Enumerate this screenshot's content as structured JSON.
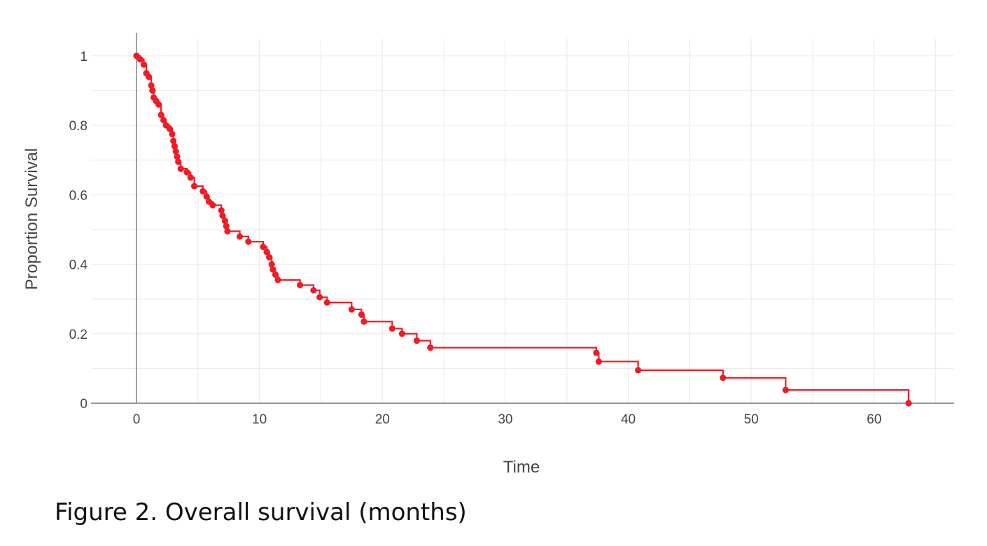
{
  "chart_data": {
    "type": "line",
    "subtype": "kaplan-meier step",
    "xlabel": "Time",
    "ylabel": "Proportion Survival",
    "xlim": [
      -3.7,
      66.5
    ],
    "ylim": [
      0,
      1.05
    ],
    "x_ticks": [
      0,
      10,
      20,
      30,
      40,
      50,
      60
    ],
    "y_ticks": [
      0,
      0.2,
      0.4,
      0.6,
      0.8,
      1
    ],
    "y_tick_labels": [
      "0",
      "0.2",
      "0.4",
      "0.6",
      "0.8",
      "1"
    ],
    "grid": true,
    "legend": false,
    "colors": {
      "series": "#ee1c25",
      "grid": "#ececec",
      "axis": "#888888"
    },
    "series": [
      {
        "x": [
          0,
          0.3,
          0.6,
          0.8,
          1.0,
          1.2,
          1.3,
          1.4,
          1.6,
          1.8,
          2.0,
          2.2,
          2.4,
          2.7,
          2.9,
          3.0,
          3.1,
          3.2,
          3.3,
          3.4,
          3.6,
          4.1,
          4.4,
          4.7,
          5.4,
          5.7,
          5.9,
          6.2,
          6.9,
          7.0,
          7.2,
          7.3,
          7.4,
          8.4,
          9.1,
          10.3,
          10.6,
          10.8,
          11.0,
          11.1,
          11.3,
          11.5,
          13.3,
          14.4,
          14.9,
          15.5,
          17.5,
          18.3,
          18.5,
          20.8,
          21.6,
          22.8,
          23.9,
          37.4,
          37.6,
          40.8,
          47.7,
          52.8,
          62.8
        ],
        "y": [
          1.0,
          0.99,
          0.975,
          0.95,
          0.94,
          0.915,
          0.9,
          0.88,
          0.87,
          0.86,
          0.83,
          0.815,
          0.8,
          0.79,
          0.775,
          0.755,
          0.74,
          0.725,
          0.71,
          0.695,
          0.675,
          0.665,
          0.65,
          0.625,
          0.61,
          0.595,
          0.58,
          0.57,
          0.555,
          0.54,
          0.525,
          0.51,
          0.495,
          0.48,
          0.465,
          0.45,
          0.435,
          0.42,
          0.4,
          0.385,
          0.37,
          0.355,
          0.34,
          0.325,
          0.305,
          0.29,
          0.27,
          0.255,
          0.235,
          0.215,
          0.2,
          0.18,
          0.16,
          0.145,
          0.12,
          0.095,
          0.073,
          0.038,
          0.0
        ]
      }
    ]
  },
  "caption": "Figure 2. Overall survival (months)"
}
